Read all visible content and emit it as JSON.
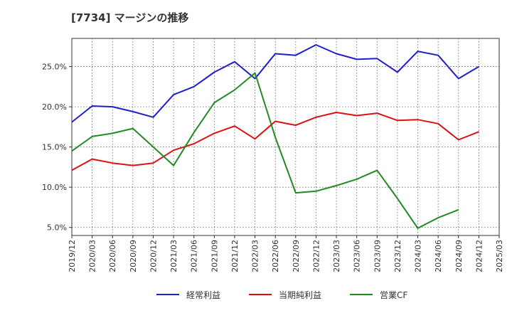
{
  "chart_data": {
    "type": "line",
    "title": "[7734]  マージンの推移",
    "x": [
      "2019/12",
      "2020/03",
      "2020/06",
      "2020/09",
      "2020/12",
      "2021/03",
      "2021/06",
      "2021/09",
      "2021/12",
      "2022/03",
      "2022/06",
      "2022/09",
      "2022/12",
      "2023/03",
      "2023/06",
      "2023/09",
      "2023/12",
      "2024/03",
      "2024/06",
      "2024/09",
      "2024/12",
      "2025/03"
    ],
    "ylim": [
      4.0,
      28.5
    ],
    "yticks": [
      5.0,
      10.0,
      15.0,
      20.0,
      25.0
    ],
    "ytick_labels": [
      "5.0%",
      "10.0%",
      "15.0%",
      "20.0%",
      "25.0%"
    ],
    "grid": true,
    "legend_position": "bottom",
    "series": [
      {
        "name": "経常利益",
        "color": "#1f1fcc",
        "values": [
          18.1,
          20.1,
          20.0,
          19.4,
          18.7,
          21.5,
          22.5,
          24.3,
          25.6,
          23.5,
          26.6,
          26.4,
          27.7,
          26.6,
          25.9,
          26.0,
          24.3,
          26.9,
          26.4,
          23.5,
          25.0,
          null
        ]
      },
      {
        "name": "当期純利益",
        "color": "#dd1111",
        "values": [
          12.1,
          13.5,
          13.0,
          12.7,
          13.0,
          14.6,
          15.4,
          16.7,
          17.6,
          16.0,
          18.2,
          17.7,
          18.7,
          19.3,
          18.9,
          19.2,
          18.3,
          18.4,
          17.9,
          15.9,
          16.9,
          null
        ]
      },
      {
        "name": "営業CF",
        "color": "#228b22",
        "values": [
          14.5,
          16.3,
          16.7,
          17.3,
          15.0,
          12.7,
          16.8,
          20.5,
          22.1,
          24.2,
          16.2,
          9.3,
          9.5,
          10.2,
          11.0,
          12.1,
          8.6,
          4.9,
          6.2,
          7.2,
          null,
          null
        ]
      }
    ]
  }
}
